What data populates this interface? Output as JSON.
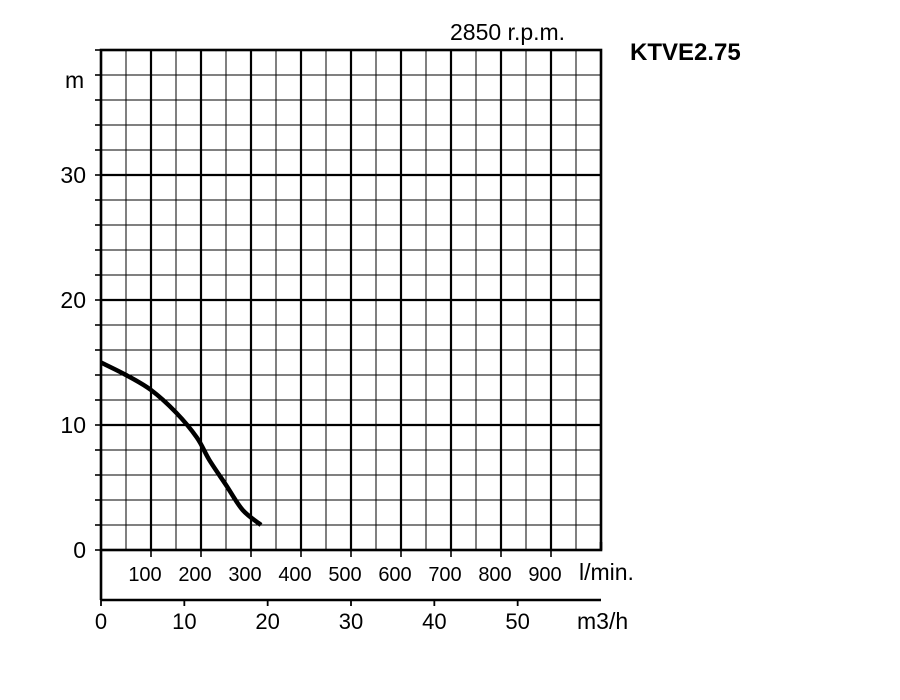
{
  "chart_data": {
    "type": "line",
    "title": "KTVE2.75",
    "subtitle": "2850 r.p.m.",
    "ylabel": "m",
    "xlabel_primary": "m3/h",
    "xlabel_secondary": "l/min.",
    "ylim": [
      0,
      40
    ],
    "xlim": [
      0,
      60
    ],
    "y_ticks": [
      "0",
      "10",
      "20",
      "30"
    ],
    "x_ticks_m3h": [
      "0",
      "10",
      "20",
      "30",
      "40",
      "50"
    ],
    "x_ticks_lmin": [
      "100",
      "200",
      "300",
      "400",
      "500",
      "600",
      "700",
      "800",
      "900"
    ],
    "grid": true,
    "series": [
      {
        "x": [
          0,
          3,
          6,
          9,
          11.5,
          13,
          15,
          17,
          19.2
        ],
        "y": [
          15,
          14,
          12.8,
          11,
          9,
          7.2,
          5.2,
          3.2,
          2
        ]
      }
    ]
  }
}
